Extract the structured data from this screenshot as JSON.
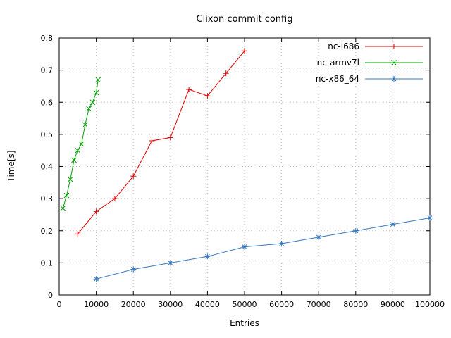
{
  "page": {
    "background": "#ffffff"
  },
  "chart_data": {
    "type": "line",
    "title": "Clixon commit config",
    "xlabel": "Entries",
    "ylabel": "Time[s]",
    "xlim": [
      0,
      100000
    ],
    "ylim": [
      0,
      0.8
    ],
    "grid": true,
    "legend_position": "top-right-inside",
    "xticks": {
      "values": [
        0,
        10000,
        20000,
        30000,
        40000,
        50000,
        60000,
        70000,
        80000,
        90000,
        100000
      ],
      "labels": [
        "0",
        "10000",
        "20000",
        "30000",
        "40000",
        "50000",
        "60000",
        "70000",
        "80000",
        "90000",
        "100000"
      ]
    },
    "yticks": {
      "values": [
        0,
        0.1,
        0.2,
        0.3,
        0.4,
        0.5,
        0.6,
        0.7,
        0.8
      ],
      "labels": [
        "0",
        "0.1",
        "0.2",
        "0.3",
        "0.4",
        "0.5",
        "0.6",
        "0.7",
        "0.8"
      ]
    },
    "series": [
      {
        "name": "nc-i686",
        "color": "#dd0000",
        "marker": "plus",
        "x": [
          5000,
          10000,
          15000,
          20000,
          25000,
          30000,
          35000,
          40000,
          45000,
          50000
        ],
        "y": [
          0.19,
          0.26,
          0.3,
          0.37,
          0.48,
          0.49,
          0.64,
          0.62,
          0.69,
          0.76
        ]
      },
      {
        "name": "nc-armv7l",
        "color": "#00a000",
        "marker": "x",
        "x": [
          1000,
          2000,
          3000,
          4000,
          5000,
          6000,
          7000,
          8000,
          9000,
          10000,
          10500
        ],
        "y": [
          0.27,
          0.31,
          0.36,
          0.42,
          0.45,
          0.47,
          0.53,
          0.58,
          0.6,
          0.63,
          0.67
        ]
      },
      {
        "name": "nc-x86_64",
        "color": "#3778bf",
        "marker": "asterisk",
        "x": [
          10000,
          20000,
          30000,
          40000,
          50000,
          60000,
          70000,
          80000,
          90000,
          100000
        ],
        "y": [
          0.05,
          0.08,
          0.1,
          0.12,
          0.15,
          0.16,
          0.18,
          0.2,
          0.22,
          0.24
        ]
      }
    ]
  }
}
